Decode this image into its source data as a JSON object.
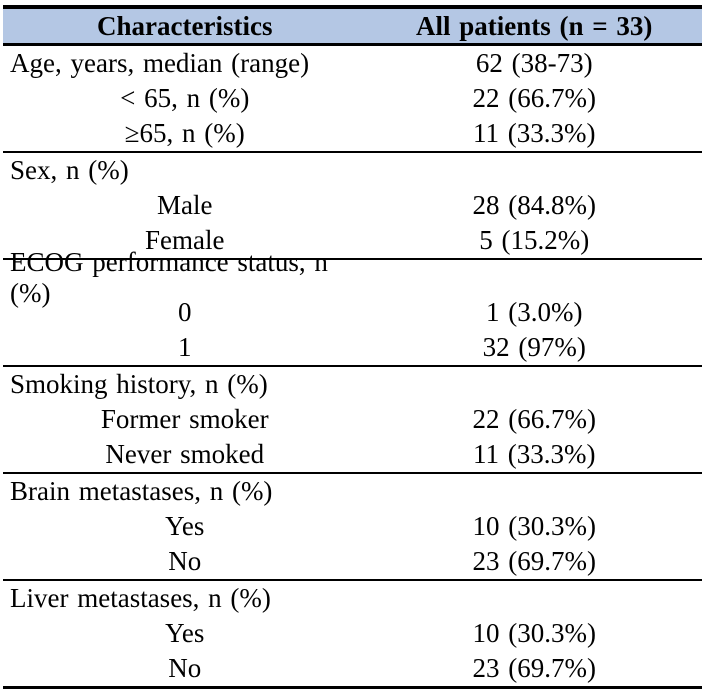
{
  "colors": {
    "header_bg": "#b4c7e4",
    "rule": "#000000"
  },
  "table": {
    "columns": [
      "Characteristics",
      "All patients (n = 33)"
    ],
    "sections": [
      {
        "rows": [
          {
            "label": "Age, years, median (range)",
            "value": "62 (38-73)",
            "indent": false
          },
          {
            "label": "< 65, n (%)",
            "value": "22 (66.7%)",
            "indent": true
          },
          {
            "label": "≥65, n (%)",
            "value": "11 (33.3%)",
            "indent": true
          }
        ]
      },
      {
        "rows": [
          {
            "label": "Sex, n (%)",
            "value": "",
            "indent": false
          },
          {
            "label": "Male",
            "value": "28 (84.8%)",
            "indent": true
          },
          {
            "label": "Female",
            "value": "5 (15.2%)",
            "indent": true
          }
        ]
      },
      {
        "rows": [
          {
            "label": "ECOG performance status, n (%)",
            "value": "",
            "indent": false
          },
          {
            "label": "0",
            "value": "1 (3.0%)",
            "indent": true
          },
          {
            "label": "1",
            "value": "32 (97%)",
            "indent": true
          }
        ]
      },
      {
        "rows": [
          {
            "label": "Smoking history, n (%)",
            "value": "",
            "indent": false
          },
          {
            "label": "Former smoker",
            "value": "22 (66.7%)",
            "indent": true
          },
          {
            "label": "Never smoked",
            "value": "11 (33.3%)",
            "indent": true
          }
        ]
      },
      {
        "rows": [
          {
            "label": "Brain metastases, n (%)",
            "value": "",
            "indent": false
          },
          {
            "label": "Yes",
            "value": "10 (30.3%)",
            "indent": true
          },
          {
            "label": "No",
            "value": "23 (69.7%)",
            "indent": true
          }
        ]
      },
      {
        "rows": [
          {
            "label": "Liver metastases, n (%)",
            "value": "",
            "indent": false
          },
          {
            "label": "Yes",
            "value": "10 (30.3%)",
            "indent": true
          },
          {
            "label": "No",
            "value": "23 (69.7%)",
            "indent": true
          }
        ]
      }
    ]
  }
}
